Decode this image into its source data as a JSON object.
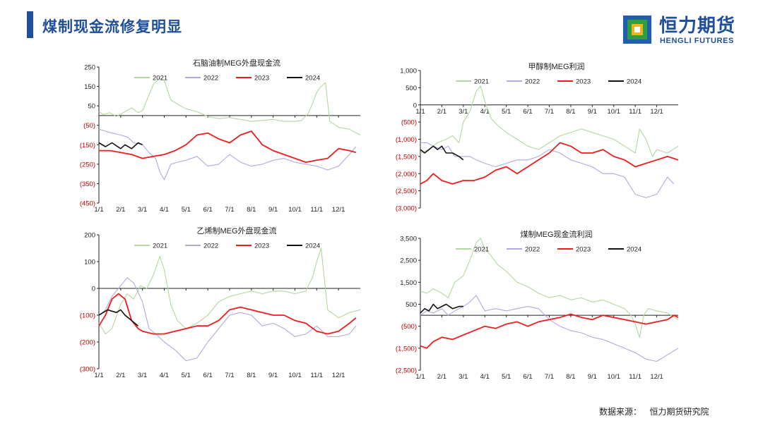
{
  "header": {
    "title": "煤制现金流修复明显"
  },
  "brand": {
    "name_cn": "恒力期货",
    "name_en": "HENGLI FUTURES"
  },
  "footer": {
    "source": "数据来源：   恒力期货研究院"
  },
  "colors": {
    "s2021": "#b3d7a0",
    "s2022": "#b1a9e0",
    "s2023": "#ee1c1c",
    "s2024": "#111111",
    "title": "#1f4f9a",
    "logo_blue": "#1f5fae",
    "logo_green": "#2e9e44",
    "logo_yellow": "#f2b21a"
  },
  "chart_data": [
    {
      "type": "line",
      "title": "石脑油制MEG外盘现金流",
      "y_ticks": [
        250,
        150,
        50,
        -50,
        -150,
        -250,
        -350,
        -450
      ],
      "y_tick_labels": [
        "250",
        "150",
        "50",
        "(50)",
        "(150)",
        "(250)",
        "(350)",
        "(450)"
      ],
      "ylim": [
        -450,
        250
      ],
      "x_tick_labels": [
        "1/1",
        "2/1",
        "3/1",
        "4/1",
        "5/1",
        "6/1",
        "7/1",
        "8/1",
        "9/1",
        "10/1",
        "11/1",
        "12/1"
      ],
      "baseline": 0,
      "x_axis_position": "bottom",
      "series": [
        {
          "name": "2021",
          "x": [
            0,
            0.2,
            0.5,
            0.8,
            0.95,
            1.2,
            1.5,
            1.8,
            2.0,
            2.2,
            2.5,
            2.8,
            3.0,
            3.3,
            3.6,
            4.0,
            4.5,
            5.0,
            5.5,
            6.0,
            6.5,
            7.0,
            7.5,
            8.0,
            8.5,
            9.0,
            9.3,
            9.6,
            9.8,
            10.0,
            10.2,
            10.4,
            10.6,
            11.0,
            11.5,
            12.0
          ],
          "values": [
            20,
            5,
            15,
            -5,
            5,
            20,
            40,
            15,
            25,
            80,
            160,
            195,
            180,
            80,
            60,
            35,
            20,
            -5,
            -15,
            -10,
            -20,
            -30,
            -25,
            -20,
            -30,
            -30,
            -25,
            10,
            60,
            120,
            150,
            170,
            -30,
            -60,
            -70,
            -100
          ]
        },
        {
          "name": "2022",
          "x": [
            0,
            0.3,
            0.6,
            1.0,
            1.3,
            1.6,
            2.0,
            2.3,
            2.6,
            2.8,
            3.0,
            3.3,
            3.6,
            4.0,
            4.5,
            5.0,
            5.5,
            6.0,
            6.5,
            7.0,
            7.5,
            8.0,
            8.5,
            9.0,
            9.5,
            10.0,
            10.5,
            11.0,
            11.5,
            11.8
          ],
          "values": [
            -70,
            -80,
            -90,
            -100,
            -110,
            -140,
            -150,
            -190,
            -220,
            -290,
            -330,
            -250,
            -240,
            -230,
            -210,
            -260,
            -250,
            -200,
            -240,
            -260,
            -250,
            -230,
            -220,
            -240,
            -250,
            -260,
            -280,
            -260,
            -200,
            -160
          ]
        },
        {
          "name": "2023",
          "x": [
            0,
            0.5,
            1.0,
            1.5,
            2.0,
            2.5,
            3.0,
            3.5,
            4.0,
            4.5,
            5.0,
            5.5,
            6.0,
            6.5,
            7.0,
            7.5,
            8.0,
            8.5,
            9.0,
            9.5,
            10.0,
            10.5,
            11.0,
            11.5,
            11.8
          ],
          "values": [
            -180,
            -180,
            -190,
            -200,
            -220,
            -210,
            -200,
            -180,
            -150,
            -100,
            -90,
            -120,
            -140,
            -100,
            -80,
            -150,
            -180,
            -200,
            -220,
            -240,
            -230,
            -220,
            -170,
            -180,
            -190
          ]
        },
        {
          "name": "2024",
          "x": [
            0,
            0.3,
            0.6,
            1.0,
            1.2,
            1.5,
            1.8,
            2.0
          ],
          "values": [
            -140,
            -160,
            -140,
            -170,
            -150,
            -170,
            -140,
            -150
          ]
        }
      ]
    },
    {
      "type": "line",
      "title": "甲醇制MEG利润",
      "y_ticks": [
        1000,
        500,
        0,
        -500,
        -1000,
        -1500,
        -2000,
        -2500,
        -3000
      ],
      "y_tick_labels": [
        "1,000",
        "500",
        "0",
        "(500)",
        "(1,000)",
        "(1,500)",
        "(2,000)",
        "(2,500)",
        "(3,000)"
      ],
      "ylim": [
        -3000,
        1000
      ],
      "x_tick_labels": [
        "1/1",
        "2/1",
        "3/1",
        "4/1",
        "5/1",
        "6/1",
        "7/1",
        "8/1",
        "9/1",
        "10/1",
        "11/1",
        "12/1"
      ],
      "baseline": 0,
      "x_axis_position": "zero",
      "series": [
        {
          "name": "2021",
          "x": [
            0,
            0.4,
            0.8,
            1.2,
            1.5,
            1.8,
            2.0,
            2.3,
            2.6,
            2.8,
            3.0,
            3.3,
            3.6,
            4.0,
            4.5,
            5.0,
            5.5,
            6.0,
            6.5,
            7.0,
            7.5,
            8.0,
            8.5,
            9.0,
            9.5,
            10.0,
            10.2,
            10.5,
            10.8,
            11.0,
            11.5,
            12.0
          ],
          "values": [
            -1400,
            -1300,
            -1100,
            -1000,
            -900,
            -1100,
            -500,
            -200,
            400,
            550,
            100,
            -400,
            -600,
            -800,
            -1000,
            -1200,
            -1300,
            -1100,
            -900,
            -800,
            -700,
            -800,
            -900,
            -1000,
            -1200,
            -1400,
            -700,
            -1000,
            -1500,
            -1300,
            -1400,
            -1200
          ]
        },
        {
          "name": "2022",
          "x": [
            0,
            0.3,
            0.6,
            1.0,
            1.3,
            1.6,
            2.0,
            2.3,
            2.6,
            3.0,
            3.5,
            4.0,
            4.5,
            5.0,
            5.5,
            6.0,
            6.5,
            7.0,
            7.5,
            8.0,
            8.5,
            9.0,
            9.5,
            10.0,
            10.5,
            11.0,
            11.5,
            11.8
          ],
          "values": [
            -1100,
            -1100,
            -1200,
            -1300,
            -1200,
            -1500,
            -1500,
            -1500,
            -1600,
            -1700,
            -1800,
            -1700,
            -1600,
            -1600,
            -1500,
            -1300,
            -1400,
            -1600,
            -1700,
            -1800,
            -2000,
            -2000,
            -2100,
            -2600,
            -2700,
            -2600,
            -2100,
            -2300
          ]
        },
        {
          "name": "2023",
          "x": [
            0,
            0.3,
            0.6,
            1.0,
            1.5,
            2.0,
            2.5,
            3.0,
            3.5,
            4.0,
            4.5,
            5.0,
            5.5,
            6.0,
            6.5,
            7.0,
            7.5,
            8.0,
            8.5,
            9.0,
            9.5,
            10.0,
            10.5,
            11.0,
            11.5,
            12.0
          ],
          "values": [
            -2300,
            -2200,
            -2000,
            -2200,
            -2300,
            -2200,
            -2200,
            -2100,
            -1900,
            -1800,
            -2000,
            -1800,
            -1600,
            -1400,
            -1100,
            -1200,
            -1400,
            -1400,
            -1300,
            -1500,
            -1600,
            -1800,
            -1700,
            -1600,
            -1500,
            -1600
          ]
        },
        {
          "name": "2024",
          "x": [
            0,
            0.2,
            0.4,
            0.6,
            0.8,
            1.0,
            1.2,
            1.5,
            1.8,
            2.0
          ],
          "values": [
            -1300,
            -1400,
            -1300,
            -1200,
            -1300,
            -1200,
            -1400,
            -1400,
            -1500,
            -1600
          ]
        }
      ]
    },
    {
      "type": "line",
      "title": "乙烯制MEG外盘现金流",
      "y_ticks": [
        200,
        100,
        0,
        -100,
        -200,
        -300
      ],
      "y_tick_labels": [
        "200",
        "100",
        "0",
        "(100)",
        "(200)",
        "(300)"
      ],
      "ylim": [
        -300,
        200
      ],
      "x_tick_labels": [
        "1/1",
        "2/1",
        "3/1",
        "4/1",
        "5/1",
        "6/1",
        "7/1",
        "8/1",
        "9/1",
        "10/1",
        "11/1",
        "12/1"
      ],
      "baseline": 0,
      "x_axis_position": "bottom",
      "series": [
        {
          "name": "2021",
          "x": [
            0,
            0.3,
            0.6,
            1.0,
            1.3,
            1.6,
            1.9,
            2.2,
            2.5,
            2.8,
            3.0,
            3.3,
            3.6,
            4.0,
            4.5,
            5.0,
            5.5,
            6.0,
            6.5,
            7.0,
            7.5,
            8.0,
            8.5,
            9.0,
            9.5,
            9.8,
            10.0,
            10.2,
            10.5,
            11.0,
            11.5,
            12.0
          ],
          "values": [
            -130,
            -170,
            -150,
            -60,
            -20,
            -40,
            10,
            0,
            50,
            120,
            70,
            -60,
            -120,
            -150,
            -130,
            -100,
            -50,
            -30,
            -20,
            -10,
            -20,
            -10,
            -10,
            -20,
            -10,
            40,
            100,
            150,
            -80,
            -110,
            -90,
            -80
          ]
        },
        {
          "name": "2022",
          "x": [
            0,
            0.3,
            0.6,
            1.0,
            1.3,
            1.6,
            2.0,
            2.3,
            2.6,
            3.0,
            3.5,
            4.0,
            4.5,
            5.0,
            5.5,
            6.0,
            6.5,
            7.0,
            7.5,
            8.0,
            8.5,
            9.0,
            9.5,
            10.0,
            10.5,
            11.0,
            11.5,
            11.8
          ],
          "values": [
            -100,
            -80,
            -30,
            10,
            40,
            20,
            -50,
            -150,
            -170,
            -200,
            -230,
            -270,
            -260,
            -200,
            -150,
            -100,
            -90,
            -100,
            -140,
            -130,
            -150,
            -180,
            -170,
            -140,
            -180,
            -180,
            -170,
            -140
          ]
        },
        {
          "name": "2023",
          "x": [
            0,
            0.3,
            0.6,
            0.9,
            1.2,
            1.5,
            1.8,
            2.0,
            2.5,
            3.0,
            3.5,
            4.0,
            4.5,
            5.0,
            5.5,
            6.0,
            6.5,
            7.0,
            7.5,
            8.0,
            8.5,
            9.0,
            9.5,
            10.0,
            10.5,
            11.0,
            11.5,
            11.8
          ],
          "values": [
            -140,
            -100,
            -40,
            -20,
            -40,
            -120,
            -150,
            -160,
            -170,
            -170,
            -160,
            -150,
            -140,
            -140,
            -120,
            -80,
            -70,
            -80,
            -90,
            -100,
            -100,
            -120,
            -130,
            -160,
            -170,
            -160,
            -130,
            -110
          ]
        },
        {
          "name": "2024",
          "x": [
            0,
            0.2,
            0.4,
            0.6,
            0.8,
            1.0,
            1.2,
            1.5,
            1.8
          ],
          "values": [
            -100,
            -90,
            -80,
            -85,
            -90,
            -80,
            -100,
            -120,
            -140
          ]
        }
      ]
    },
    {
      "type": "line",
      "title": "煤制MEG现金流利润",
      "y_ticks": [
        3500,
        2500,
        1500,
        500,
        -500,
        -1500,
        -2500
      ],
      "y_tick_labels": [
        "3,500",
        "2,500",
        "1,500",
        "500",
        "(500)",
        "(1,500)",
        "(2,500)"
      ],
      "ylim": [
        -2500,
        3500
      ],
      "x_tick_labels": [
        "1/1",
        "2/1",
        "3/1",
        "4/1",
        "5/1",
        "6/1",
        "7/1",
        "8/1",
        "9/1",
        "10/1",
        "11/1",
        "12/1"
      ],
      "baseline": 0,
      "x_axis_position": "bottom",
      "series": [
        {
          "name": "2021",
          "x": [
            0,
            0.3,
            0.6,
            1.0,
            1.3,
            1.6,
            2.0,
            2.3,
            2.6,
            2.8,
            3.0,
            3.3,
            3.6,
            4.0,
            4.5,
            5.0,
            5.5,
            6.0,
            6.5,
            7.0,
            7.5,
            8.0,
            8.5,
            9.0,
            9.5,
            9.8,
            10.0,
            10.2,
            10.4,
            10.6,
            11.0,
            11.5,
            12.0
          ],
          "values": [
            1100,
            1000,
            1200,
            1000,
            800,
            1500,
            1800,
            2500,
            3300,
            3500,
            3000,
            2700,
            2300,
            2000,
            1500,
            1300,
            1000,
            800,
            900,
            700,
            800,
            600,
            700,
            500,
            300,
            0,
            -400,
            -1000,
            0,
            300,
            200,
            100,
            -200
          ]
        },
        {
          "name": "2022",
          "x": [
            0,
            0.3,
            0.6,
            1.0,
            1.3,
            1.6,
            2.0,
            2.3,
            2.6,
            3.0,
            3.5,
            4.0,
            4.5,
            5.0,
            5.5,
            6.0,
            6.5,
            7.0,
            7.5,
            8.0,
            8.5,
            9.0,
            9.5,
            10.0,
            10.5,
            11.0,
            11.5,
            12.0
          ],
          "values": [
            0,
            200,
            100,
            300,
            0,
            200,
            400,
            600,
            900,
            200,
            300,
            200,
            300,
            400,
            300,
            -200,
            -500,
            -700,
            -800,
            -1000,
            -1100,
            -1300,
            -1500,
            -1700,
            -2000,
            -2100,
            -1800,
            -1500
          ]
        },
        {
          "name": "2023",
          "x": [
            0,
            0.3,
            0.6,
            1.0,
            1.5,
            2.0,
            2.5,
            3.0,
            3.5,
            4.0,
            4.5,
            5.0,
            5.5,
            6.0,
            6.5,
            7.0,
            7.5,
            8.0,
            8.5,
            9.0,
            9.5,
            10.0,
            10.5,
            11.0,
            11.5,
            11.8,
            12.0
          ],
          "values": [
            -1400,
            -1500,
            -1200,
            -1000,
            -1100,
            -900,
            -700,
            -500,
            -600,
            -400,
            -300,
            -500,
            -300,
            -200,
            -100,
            50,
            -100,
            -200,
            0,
            -100,
            -200,
            -300,
            -400,
            -300,
            -200,
            0,
            -100
          ]
        },
        {
          "name": "2024",
          "x": [
            0,
            0.2,
            0.4,
            0.6,
            0.8,
            1.0,
            1.2,
            1.5,
            1.8,
            2.0
          ],
          "values": [
            100,
            300,
            200,
            500,
            300,
            400,
            500,
            300,
            400,
            400
          ]
        }
      ]
    }
  ]
}
